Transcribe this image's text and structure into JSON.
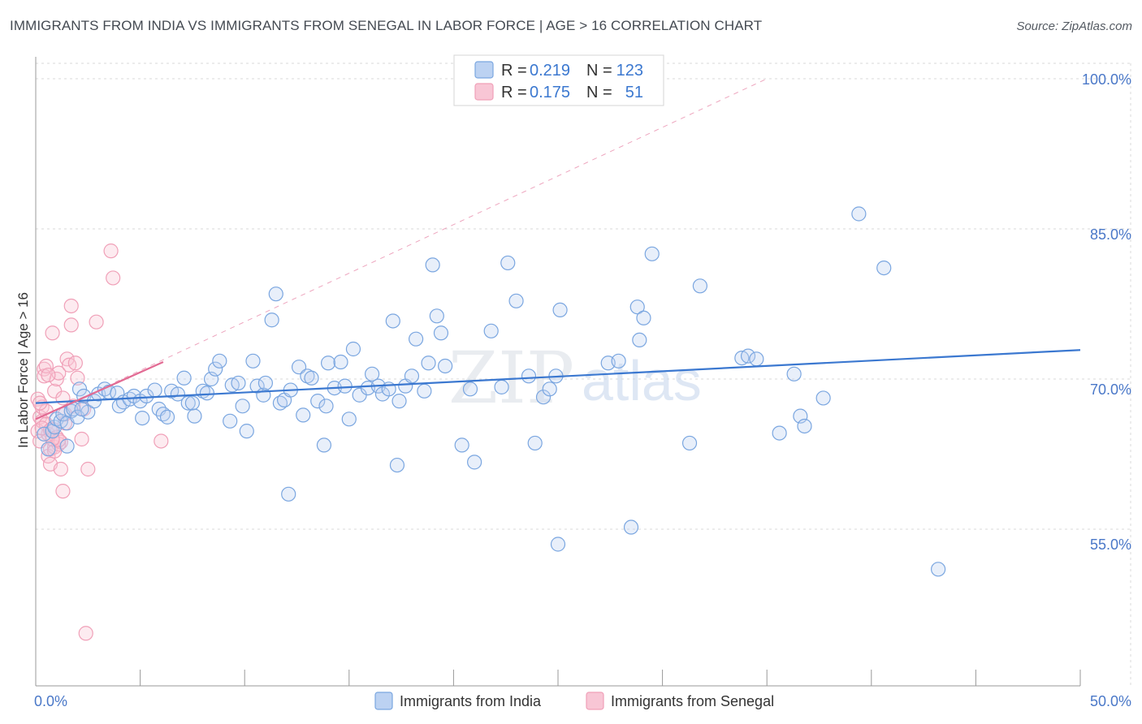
{
  "title": "IMMIGRANTS FROM INDIA VS IMMIGRANTS FROM SENEGAL IN LABOR FORCE | AGE > 16 CORRELATION CHART",
  "source": "Source: ZipAtlas.com",
  "watermark": {
    "zip": "ZIP",
    "atlas": "atlas"
  },
  "colors": {
    "india": "#7aa6e0",
    "india_line": "#3b78d0",
    "senegal": "#f0a0b8",
    "senegal_line": "#e26a93",
    "axis_text": "#4a78c8",
    "grid": "#d9d9d9"
  },
  "legend": {
    "india": {
      "r_label": "R =",
      "r_value": "0.219",
      "n_label": "N =",
      "n_value": "123"
    },
    "senegal": {
      "r_label": "R =",
      "r_value": "0.175",
      "n_label": "N =",
      "n_value": "51"
    }
  },
  "chart_data": {
    "type": "scatter",
    "title": "IMMIGRANTS FROM INDIA VS IMMIGRANTS FROM SENEGAL IN LABOR FORCE | AGE > 16 CORRELATION CHART",
    "xlabel": "",
    "ylabel": "In Labor Force | Age > 16",
    "xlim": [
      0,
      50
    ],
    "ylim": [
      42,
      102
    ],
    "x_tick_labels": [
      "0.0%",
      "50.0%"
    ],
    "y_ticks": [
      55,
      70,
      85,
      100
    ],
    "y_tick_labels": [
      "55.0%",
      "70.0%",
      "85.0%",
      "100.0%"
    ],
    "grid": true,
    "legend_position": "top-center",
    "series": [
      {
        "name": "Immigrants from India",
        "color": "#7aa6e0",
        "trend": {
          "x": [
            0,
            50
          ],
          "y": [
            67.6,
            72.9
          ]
        },
        "points": [
          [
            0.4,
            64.5
          ],
          [
            0.6,
            63.0
          ],
          [
            0.8,
            64.8
          ],
          [
            0.9,
            65.2
          ],
          [
            1.0,
            66.0
          ],
          [
            1.2,
            65.8
          ],
          [
            1.3,
            66.5
          ],
          [
            1.5,
            65.6
          ],
          [
            1.7,
            66.8
          ],
          [
            1.8,
            67.0
          ],
          [
            2.0,
            66.2
          ],
          [
            2.1,
            69.0
          ],
          [
            2.3,
            68.3
          ],
          [
            2.5,
            66.7
          ],
          [
            2.8,
            67.8
          ],
          [
            3.0,
            68.5
          ],
          [
            3.3,
            69.0
          ],
          [
            3.5,
            68.7
          ],
          [
            3.9,
            68.6
          ],
          [
            4.0,
            67.3
          ],
          [
            4.2,
            67.7
          ],
          [
            4.5,
            68.0
          ],
          [
            4.7,
            68.3
          ],
          [
            5.0,
            67.8
          ],
          [
            5.1,
            66.1
          ],
          [
            5.3,
            68.3
          ],
          [
            5.7,
            68.9
          ],
          [
            5.9,
            67.0
          ],
          [
            6.1,
            66.5
          ],
          [
            6.3,
            66.2
          ],
          [
            6.5,
            68.8
          ],
          [
            6.8,
            68.5
          ],
          [
            7.1,
            70.1
          ],
          [
            7.3,
            67.6
          ],
          [
            7.5,
            67.6
          ],
          [
            7.6,
            66.3
          ],
          [
            8.0,
            68.8
          ],
          [
            8.2,
            68.6
          ],
          [
            8.4,
            70.0
          ],
          [
            8.6,
            71.0
          ],
          [
            8.8,
            71.8
          ],
          [
            9.3,
            65.8
          ],
          [
            9.4,
            69.4
          ],
          [
            9.7,
            69.6
          ],
          [
            9.9,
            67.3
          ],
          [
            10.1,
            64.8
          ],
          [
            10.4,
            71.8
          ],
          [
            10.6,
            69.3
          ],
          [
            10.9,
            68.4
          ],
          [
            11.0,
            69.6
          ],
          [
            11.3,
            75.9
          ],
          [
            11.5,
            78.5
          ],
          [
            11.7,
            67.6
          ],
          [
            11.9,
            67.9
          ],
          [
            12.2,
            68.9
          ],
          [
            12.6,
            71.2
          ],
          [
            12.8,
            66.4
          ],
          [
            13.0,
            70.3
          ],
          [
            13.2,
            70.1
          ],
          [
            13.5,
            67.8
          ],
          [
            13.9,
            67.3
          ],
          [
            14.0,
            71.6
          ],
          [
            14.3,
            69.1
          ],
          [
            14.6,
            71.7
          ],
          [
            14.8,
            69.3
          ],
          [
            15.0,
            66.0
          ],
          [
            15.2,
            73.0
          ],
          [
            15.5,
            68.4
          ],
          [
            15.9,
            69.1
          ],
          [
            16.1,
            70.5
          ],
          [
            16.4,
            69.3
          ],
          [
            16.6,
            68.5
          ],
          [
            16.9,
            69.0
          ],
          [
            17.1,
            75.8
          ],
          [
            17.4,
            67.8
          ],
          [
            17.7,
            69.3
          ],
          [
            18.0,
            70.3
          ],
          [
            18.2,
            74.0
          ],
          [
            18.6,
            68.8
          ],
          [
            18.8,
            71.6
          ],
          [
            19.0,
            81.4
          ],
          [
            19.2,
            76.3
          ],
          [
            19.4,
            74.6
          ],
          [
            19.6,
            71.3
          ],
          [
            20.4,
            63.4
          ],
          [
            20.8,
            69.0
          ],
          [
            21.0,
            61.7
          ],
          [
            21.8,
            74.8
          ],
          [
            22.3,
            69.2
          ],
          [
            22.6,
            81.6
          ],
          [
            23.0,
            77.8
          ],
          [
            23.6,
            70.3
          ],
          [
            23.9,
            63.6
          ],
          [
            24.3,
            68.2
          ],
          [
            24.6,
            69.0
          ],
          [
            24.9,
            70.3
          ],
          [
            25.0,
            53.5
          ],
          [
            25.1,
            76.9
          ],
          [
            27.4,
            71.6
          ],
          [
            27.9,
            71.8
          ],
          [
            28.5,
            55.2
          ],
          [
            28.8,
            77.2
          ],
          [
            28.9,
            73.9
          ],
          [
            29.1,
            76.1
          ],
          [
            29.5,
            82.5
          ],
          [
            31.3,
            63.6
          ],
          [
            31.8,
            79.3
          ],
          [
            33.8,
            72.1
          ],
          [
            34.1,
            72.3
          ],
          [
            34.5,
            72.0
          ],
          [
            35.6,
            64.6
          ],
          [
            36.3,
            70.5
          ],
          [
            36.6,
            66.3
          ],
          [
            36.8,
            65.3
          ],
          [
            37.7,
            68.1
          ],
          [
            39.4,
            86.5
          ],
          [
            40.6,
            81.1
          ],
          [
            43.2,
            51.0
          ],
          [
            12.1,
            58.5
          ],
          [
            17.3,
            61.4
          ],
          [
            13.8,
            63.4
          ],
          [
            2.2,
            67.0
          ],
          [
            1.5,
            63.3
          ]
        ]
      },
      {
        "name": "Immigrants from Senegal",
        "color": "#f0a0b8",
        "trend": {
          "x": [
            0,
            6.1
          ],
          "y": [
            66.0,
            71.7
          ]
        },
        "trend_extension": {
          "x": [
            0,
            35
          ],
          "y": [
            66.0,
            100.0
          ]
        },
        "points": [
          [
            0.1,
            68.0
          ],
          [
            0.1,
            64.8
          ],
          [
            0.2,
            66.2
          ],
          [
            0.2,
            63.8
          ],
          [
            0.3,
            67.2
          ],
          [
            0.3,
            65.8
          ],
          [
            0.4,
            71.0
          ],
          [
            0.4,
            70.3
          ],
          [
            0.5,
            71.3
          ],
          [
            0.5,
            65.5
          ],
          [
            0.6,
            62.3
          ],
          [
            0.6,
            64.5
          ],
          [
            0.7,
            63.0
          ],
          [
            0.7,
            61.5
          ],
          [
            0.8,
            74.6
          ],
          [
            0.8,
            65.0
          ],
          [
            0.9,
            63.2
          ],
          [
            0.9,
            68.8
          ],
          [
            1.0,
            70.0
          ],
          [
            1.0,
            64.2
          ],
          [
            1.1,
            70.6
          ],
          [
            1.1,
            63.5
          ],
          [
            1.2,
            63.7
          ],
          [
            1.2,
            61.0
          ],
          [
            1.3,
            58.8
          ],
          [
            1.3,
            68.1
          ],
          [
            1.4,
            65.6
          ],
          [
            1.5,
            72.0
          ],
          [
            1.6,
            71.4
          ],
          [
            1.7,
            77.3
          ],
          [
            1.7,
            75.4
          ],
          [
            1.8,
            67.3
          ],
          [
            1.9,
            71.6
          ],
          [
            2.0,
            70.1
          ],
          [
            2.2,
            64.0
          ],
          [
            2.3,
            67.0
          ],
          [
            2.4,
            44.6
          ],
          [
            2.5,
            61.0
          ],
          [
            2.9,
            75.7
          ],
          [
            3.6,
            82.8
          ],
          [
            3.7,
            80.1
          ],
          [
            6.0,
            63.8
          ],
          [
            0.3,
            65.1
          ],
          [
            0.5,
            66.8
          ],
          [
            0.7,
            64.9
          ],
          [
            0.9,
            62.8
          ],
          [
            1.1,
            63.9
          ],
          [
            1.4,
            66.5
          ],
          [
            0.2,
            67.6
          ],
          [
            0.6,
            70.4
          ],
          [
            0.8,
            64.0
          ]
        ]
      }
    ]
  },
  "bottom_legend": [
    {
      "label": "Immigrants from India",
      "color": "#7aa6e0"
    },
    {
      "label": "Immigrants from Senegal",
      "color": "#f0a0b8"
    }
  ]
}
